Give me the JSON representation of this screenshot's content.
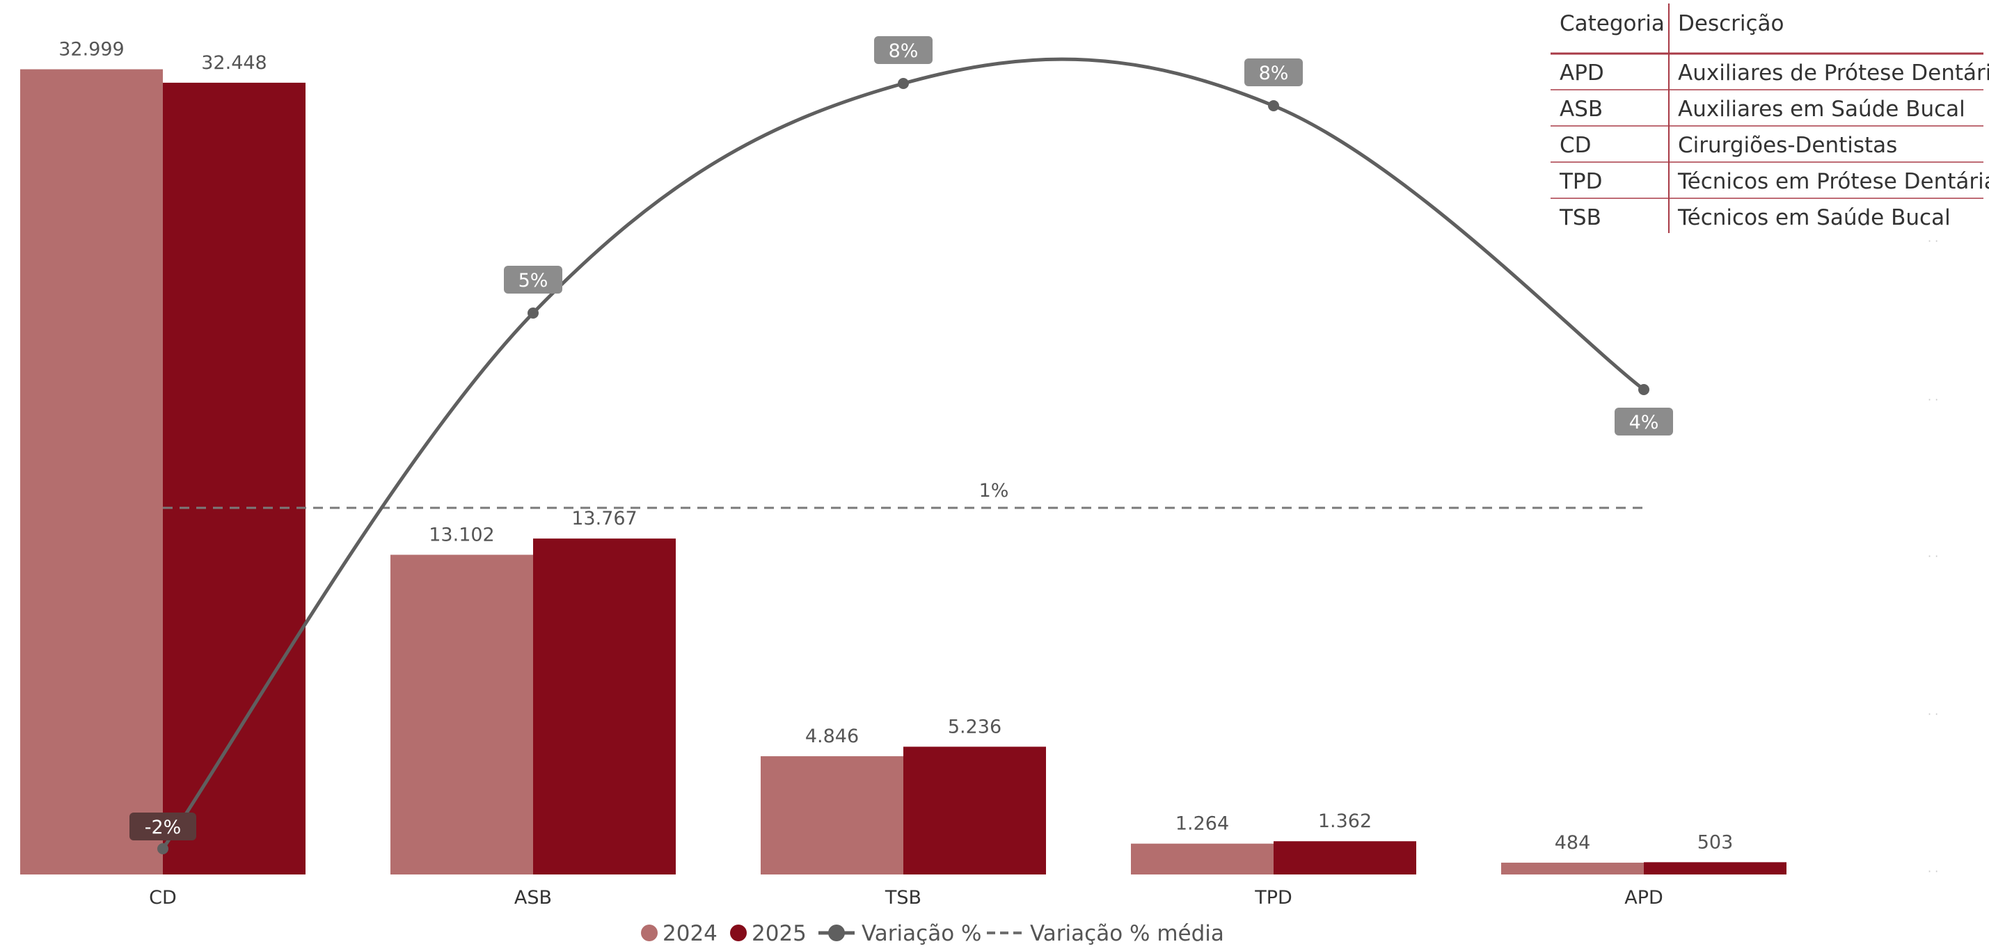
{
  "chart_data": {
    "type": "bar",
    "categories": [
      "CD",
      "ASB",
      "TSB",
      "TPD",
      "APD"
    ],
    "series": [
      {
        "name": "2024",
        "values": [
          32999,
          13102,
          4846,
          1264,
          484
        ],
        "labels": [
          "32.999",
          "13.102",
          "4.846",
          "1.264",
          "484"
        ],
        "color": "#b46e6e"
      },
      {
        "name": "2025",
        "values": [
          32448,
          13767,
          5236,
          1362,
          503
        ],
        "labels": [
          "32.448",
          "13.767",
          "5.236",
          "1.362",
          "503"
        ],
        "color": "#850b1a"
      }
    ],
    "line": {
      "name": "Variação %",
      "values": [
        -2,
        5,
        8,
        8,
        4
      ],
      "labels": [
        "-2%",
        "5%",
        "8%",
        "8%",
        "4%"
      ],
      "color": "#5f5f5f",
      "range": [
        -2,
        8
      ]
    },
    "average": {
      "name": "Variação % média",
      "value": 1,
      "label": "1%"
    },
    "ylim": [
      0,
      33500
    ],
    "grid": false,
    "legend": "bottom-center"
  },
  "legend": {
    "items": [
      {
        "label": "2024",
        "color": "#b46e6e",
        "kind": "dot"
      },
      {
        "label": "2025",
        "color": "#850b1a",
        "kind": "dot"
      },
      {
        "label": "Variação %",
        "color": "#5f5f5f",
        "kind": "line-dot"
      },
      {
        "label": "Variação % média",
        "color": "#6f6f6f",
        "kind": "dash"
      }
    ]
  },
  "table": {
    "headers": [
      "Categoria",
      "Descrição"
    ],
    "rows": [
      [
        "APD",
        "Auxiliares de Prótese Dentária"
      ],
      [
        "ASB",
        "Auxiliares em Saúde Bucal"
      ],
      [
        "CD",
        "Cirurgiões-Dentistas"
      ],
      [
        "TPD",
        "Técnicos em Prótese Dentária"
      ],
      [
        "TSB",
        "Técnicos em Saúde Bucal"
      ]
    ],
    "accent": "#a83a46"
  }
}
